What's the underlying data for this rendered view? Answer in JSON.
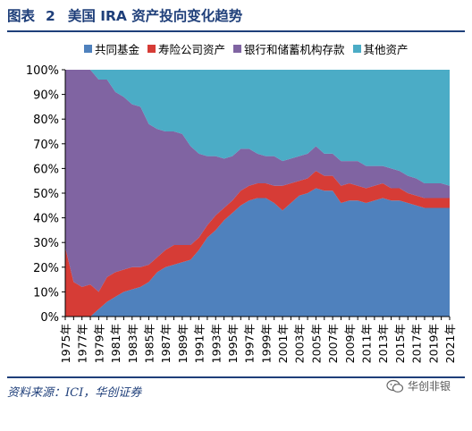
{
  "figure": {
    "label": "图表",
    "number": "2",
    "title": "美国 IRA 资产投向变化趋势"
  },
  "source": "资料来源：ICI，华创证券",
  "watermark": "华创非银",
  "chart_data": {
    "type": "area",
    "stacked": true,
    "x": [
      1975,
      1976,
      1977,
      1978,
      1979,
      1980,
      1981,
      1982,
      1983,
      1984,
      1985,
      1986,
      1987,
      1988,
      1989,
      1990,
      1991,
      1992,
      1993,
      1994,
      1995,
      1996,
      1997,
      1998,
      1999,
      2000,
      2001,
      2002,
      2003,
      2004,
      2005,
      2006,
      2007,
      2008,
      2009,
      2010,
      2011,
      2012,
      2013,
      2014,
      2015,
      2016,
      2017,
      2018,
      2019,
      2020,
      2021
    ],
    "x_tick_labels": [
      "1975年",
      "1977年",
      "1979年",
      "1981年",
      "1983年",
      "1985年",
      "1987年",
      "1989年",
      "1991年",
      "1993年",
      "1995年",
      "1997年",
      "1999年",
      "2001年",
      "2003年",
      "2005年",
      "2007年",
      "2009年",
      "2011年",
      "2013年",
      "2015年",
      "2017年",
      "2019年",
      "2021年"
    ],
    "ylim": [
      0,
      100
    ],
    "y_tick_labels": [
      "0%",
      "10%",
      "20%",
      "30%",
      "40%",
      "50%",
      "60%",
      "70%",
      "80%",
      "90%",
      "100%"
    ],
    "series": [
      {
        "name": "共同基金",
        "color": "#4f81bd",
        "values": [
          0,
          0,
          0,
          0,
          3,
          6,
          8,
          10,
          11,
          12,
          14,
          18,
          20,
          21,
          22,
          23,
          27,
          32,
          35,
          39,
          42,
          45,
          47,
          48,
          48,
          46,
          43,
          46,
          49,
          50,
          52,
          51,
          51,
          46,
          47,
          47,
          46,
          47,
          48,
          47,
          47,
          46,
          45,
          44,
          44,
          44,
          44
        ]
      },
      {
        "name": "寿险公司资产",
        "color": "#d63c36",
        "values": [
          28,
          14,
          12,
          13,
          7,
          10,
          10,
          9,
          9,
          8,
          7,
          6,
          7,
          8,
          7,
          6,
          5,
          5,
          6,
          5,
          5,
          6,
          6,
          6,
          6,
          7,
          10,
          8,
          6,
          6,
          7,
          6,
          6,
          7,
          7,
          6,
          6,
          6,
          6,
          5,
          5,
          4,
          4,
          4,
          4,
          4,
          4
        ]
      },
      {
        "name": "银行和储蓄机构存款",
        "color": "#8064a2",
        "values": [
          72,
          86,
          88,
          87,
          86,
          80,
          73,
          70,
          66,
          65,
          57,
          52,
          48,
          46,
          45,
          40,
          34,
          28,
          24,
          20,
          18,
          17,
          15,
          12,
          11,
          12,
          10,
          10,
          10,
          10,
          10,
          9,
          9,
          10,
          9,
          10,
          9,
          8,
          7,
          8,
          7,
          7,
          7,
          6,
          6,
          6,
          5
        ]
      },
      {
        "name": "其他资产",
        "color": "#4bacc6",
        "values": [
          0,
          0,
          0,
          0,
          4,
          4,
          9,
          11,
          14,
          15,
          22,
          24,
          25,
          25,
          26,
          31,
          34,
          35,
          35,
          36,
          35,
          32,
          32,
          34,
          35,
          35,
          37,
          36,
          35,
          34,
          31,
          34,
          34,
          37,
          37,
          37,
          39,
          39,
          39,
          40,
          41,
          43,
          44,
          46,
          46,
          46,
          47
        ]
      }
    ]
  }
}
